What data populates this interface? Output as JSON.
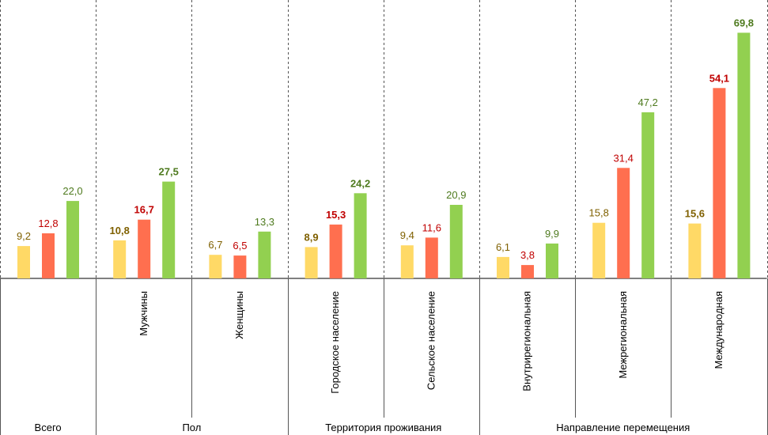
{
  "chart_data": {
    "type": "bar",
    "title": "",
    "xlabel": "",
    "ylabel": "",
    "ylim": [
      0,
      75
    ],
    "grid": false,
    "legend": "none",
    "series_colors": [
      "#FFD966",
      "#FF6F4F",
      "#92D050"
    ],
    "value_label_colors": [
      "#7F6000",
      "#C00000",
      "#4E7A1E"
    ],
    "groups": [
      {
        "label": "Всего",
        "categories": [
          {
            "label": "",
            "values": [
              9.2,
              12.8,
              22.0
            ],
            "labels": [
              "9,2",
              "12,8",
              "22,0"
            ],
            "bold": false
          }
        ]
      },
      {
        "label": "Пол",
        "categories": [
          {
            "label": "Мужчины",
            "values": [
              10.8,
              16.7,
              27.5
            ],
            "labels": [
              "10,8",
              "16,7",
              "27,5"
            ],
            "bold": true
          },
          {
            "label": "Женщины",
            "values": [
              6.7,
              6.5,
              13.3
            ],
            "labels": [
              "6,7",
              "6,5",
              "13,3"
            ],
            "bold": false
          }
        ]
      },
      {
        "label": "Территория проживания",
        "categories": [
          {
            "label": "Городское население",
            "values": [
              8.9,
              15.3,
              24.2
            ],
            "labels": [
              "8,9",
              "15,3",
              "24,2"
            ],
            "bold": true
          },
          {
            "label": "Сельское население",
            "values": [
              9.4,
              11.6,
              20.9
            ],
            "labels": [
              "9,4",
              "11,6",
              "20,9"
            ],
            "bold": false
          }
        ]
      },
      {
        "label": "Направление перемещения",
        "categories": [
          {
            "label": "Внутрирегиональная",
            "values": [
              6.1,
              3.8,
              9.9
            ],
            "labels": [
              "6,1",
              "3,8",
              "9,9"
            ],
            "bold": false
          },
          {
            "label": "Межрегиональная",
            "values": [
              15.8,
              31.4,
              47.2
            ],
            "labels": [
              "15,8",
              "31,4",
              "47,2"
            ],
            "bold": false
          },
          {
            "label": "Международная",
            "values": [
              15.6,
              54.1,
              69.8
            ],
            "labels": [
              "15,6",
              "54,1",
              "69,8"
            ],
            "bold": true
          }
        ]
      }
    ]
  }
}
